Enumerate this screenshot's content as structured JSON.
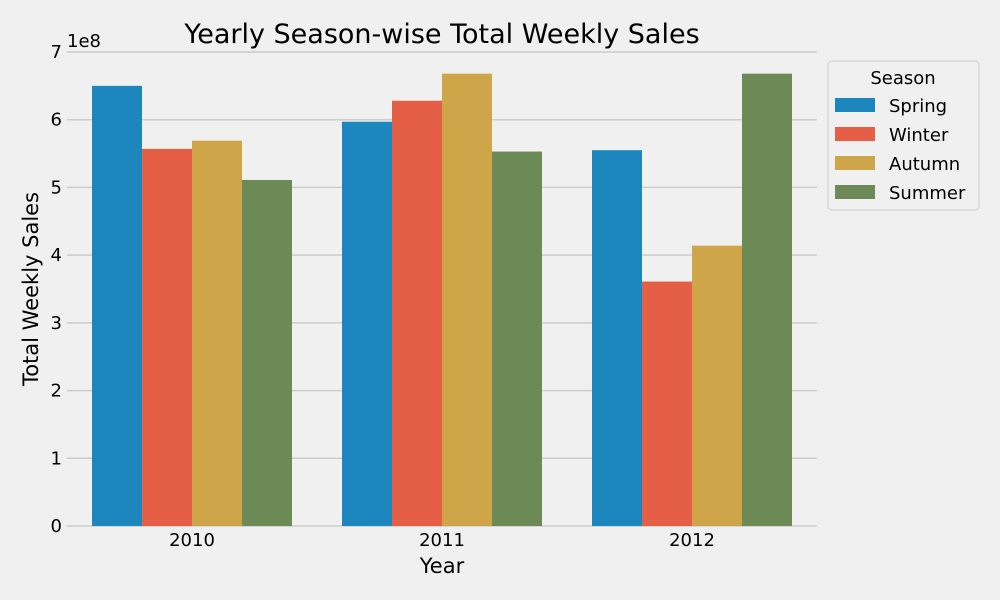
{
  "chart_data": {
    "type": "bar",
    "title": "Yearly Season-wise Total Weekly Sales",
    "xlabel": "Year",
    "ylabel": "Total Weekly Sales",
    "y_offset_label": "1e8",
    "y_scale": 100000000,
    "ylim": [
      0,
      700000000
    ],
    "yticks": [
      0,
      100000000,
      200000000,
      300000000,
      400000000,
      500000000,
      600000000,
      700000000
    ],
    "ytick_labels": [
      "0",
      "1",
      "2",
      "3",
      "4",
      "5",
      "6",
      "7"
    ],
    "categories": [
      "2010",
      "2011",
      "2012"
    ],
    "series": [
      {
        "name": "Spring",
        "color": "#1d87bd",
        "values": [
          650000000,
          597000000,
          555000000
        ]
      },
      {
        "name": "Winter",
        "color": "#e45f45",
        "values": [
          557000000,
          628000000,
          361000000
        ]
      },
      {
        "name": "Autumn",
        "color": "#cfa549",
        "values": [
          569000000,
          668000000,
          414000000
        ]
      },
      {
        "name": "Summer",
        "color": "#6b8a56",
        "values": [
          511000000,
          553000000,
          668000000
        ]
      }
    ],
    "legend": {
      "title": "Season",
      "placement": "top-right-outside"
    },
    "grid": "y"
  }
}
